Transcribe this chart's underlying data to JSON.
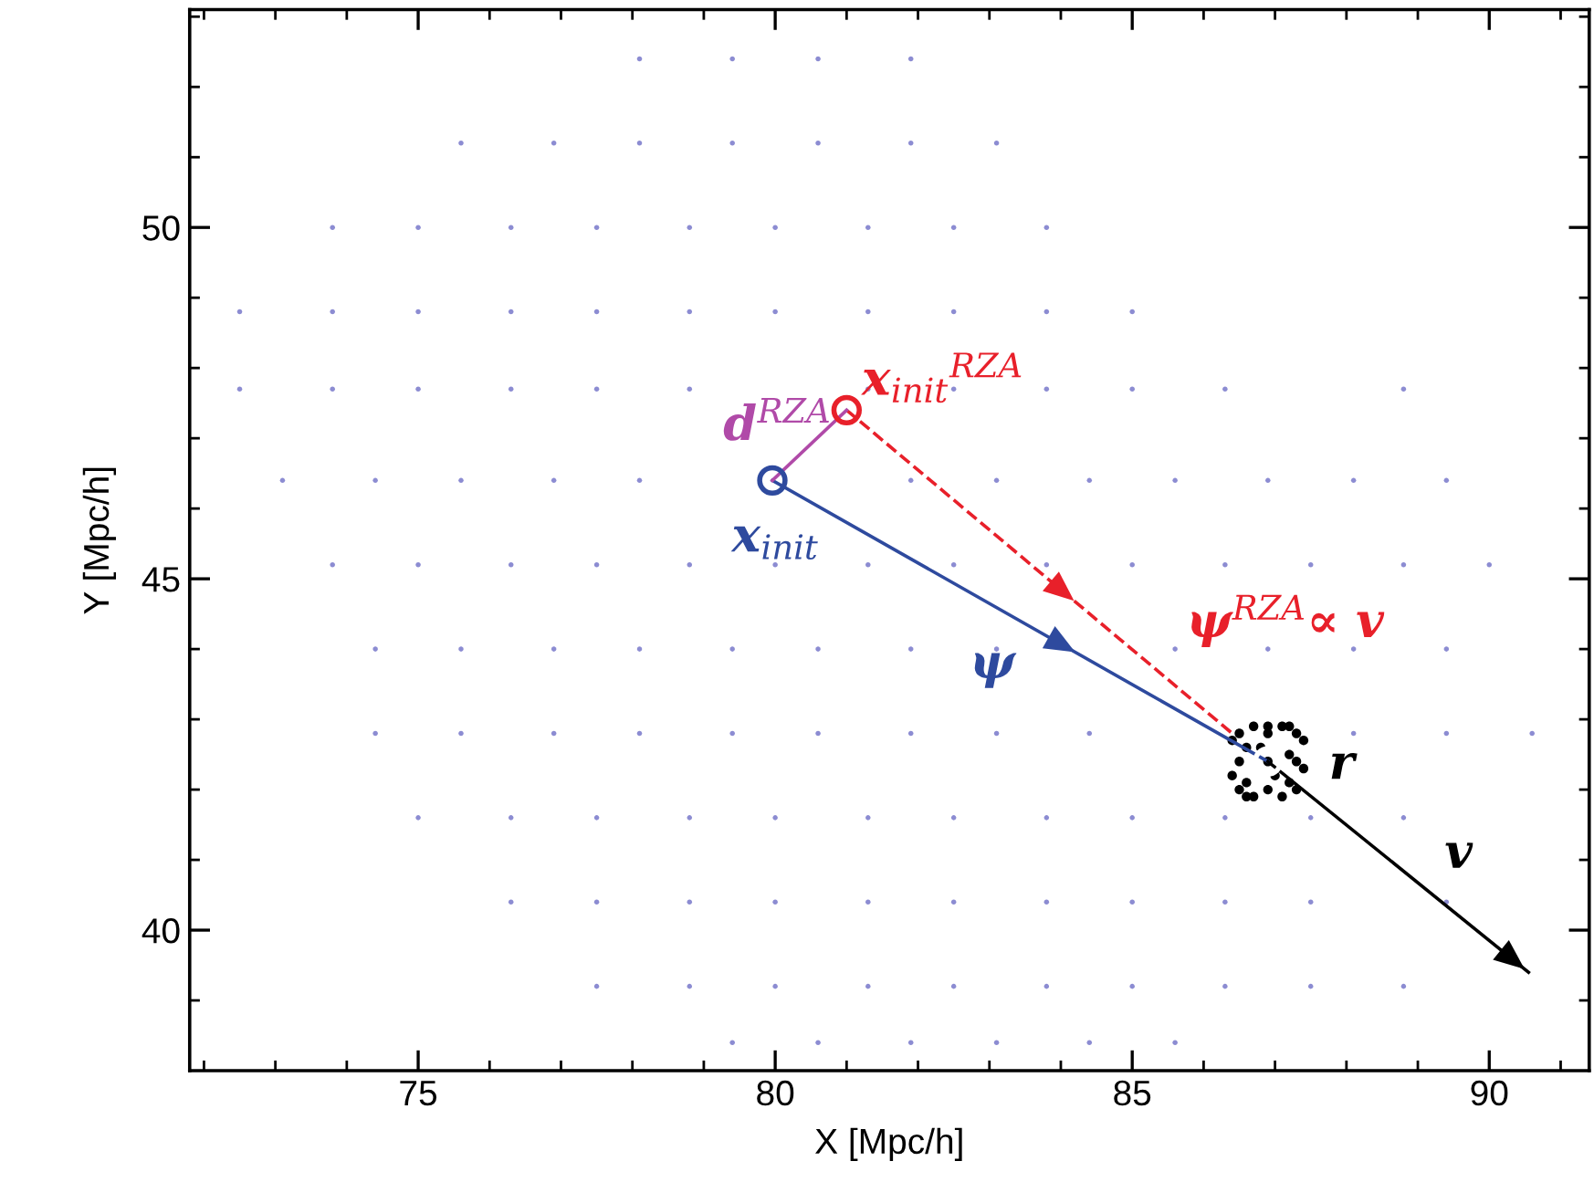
{
  "chart_data": {
    "type": "scatter",
    "xlabel": "X [Mpc/h]",
    "ylabel": "Y [Mpc/h]",
    "xlim": [
      71.8,
      91.4
    ],
    "ylim": [
      38.0,
      53.1
    ],
    "xticks": [
      {
        "value": 72,
        "label": null
      },
      {
        "value": 73,
        "label": null
      },
      {
        "value": 74,
        "label": null
      },
      75,
      {
        "value": 76,
        "label": null
      },
      {
        "value": 77,
        "label": null
      },
      {
        "value": 78,
        "label": null
      },
      {
        "value": 79,
        "label": null
      },
      80,
      {
        "value": 81,
        "label": null
      },
      {
        "value": 82,
        "label": null
      },
      {
        "value": 83,
        "label": null
      },
      {
        "value": 84,
        "label": null
      },
      85,
      {
        "value": 86,
        "label": null
      },
      {
        "value": 87,
        "label": null
      },
      {
        "value": 88,
        "label": null
      },
      {
        "value": 89,
        "label": null
      },
      90,
      {
        "value": 91,
        "label": null
      }
    ],
    "yticks": [
      {
        "value": 39,
        "label": null
      },
      40,
      {
        "value": 41,
        "label": null
      },
      {
        "value": 42,
        "label": null
      },
      {
        "value": 43,
        "label": null
      },
      {
        "value": 44,
        "label": null
      },
      45,
      {
        "value": 46,
        "label": null
      },
      {
        "value": 47,
        "label": null
      },
      {
        "value": 48,
        "label": null
      },
      {
        "value": 49,
        "label": null
      },
      50,
      {
        "value": 51,
        "label": null
      },
      {
        "value": 52,
        "label": null
      },
      {
        "value": 53,
        "label": null
      }
    ],
    "grid": false,
    "series": [
      {
        "color": "#8c8cd2",
        "marker": "circle",
        "x": [
          78.1,
          79.4,
          80.6,
          81.9,
          75.6,
          76.9,
          78.1,
          79.4,
          80.6,
          81.9,
          83.1,
          73.8,
          75.0,
          76.3,
          77.5,
          78.8,
          80.0,
          81.3,
          82.5,
          83.8,
          72.5,
          73.8,
          75.0,
          76.3,
          77.5,
          78.8,
          80.0,
          81.3,
          82.5,
          83.8,
          85.0,
          72.5,
          73.8,
          75.0,
          76.3,
          77.5,
          78.8,
          81.3,
          82.5,
          83.8,
          85.0,
          86.3,
          88.8,
          73.1,
          74.4,
          75.6,
          76.9,
          78.1,
          81.9,
          83.1,
          84.4,
          85.6,
          86.9,
          88.1,
          89.4,
          73.8,
          75.0,
          76.3,
          77.5,
          78.8,
          80.0,
          81.3,
          82.5,
          83.8,
          85.0,
          86.3,
          87.5,
          88.8,
          90.0,
          74.4,
          75.6,
          76.9,
          78.1,
          79.4,
          80.6,
          81.9,
          83.1,
          85.6,
          86.9,
          88.1,
          89.4,
          74.4,
          75.6,
          76.9,
          78.1,
          79.4,
          80.6,
          81.9,
          83.1,
          84.4,
          88.1,
          89.4,
          90.6,
          75.0,
          76.3,
          77.5,
          78.8,
          80.0,
          81.3,
          82.5,
          83.8,
          85.0,
          86.3,
          87.5,
          88.8,
          76.3,
          77.5,
          78.8,
          80.0,
          81.3,
          82.5,
          83.8,
          85.0,
          86.3,
          87.5,
          89.4,
          77.5,
          78.8,
          80.0,
          81.3,
          82.5,
          83.8,
          85.0,
          86.3,
          87.5,
          88.8,
          79.4,
          80.6,
          81.9,
          83.1,
          84.4,
          85.6
        ],
        "values": [
          52.4,
          52.4,
          52.4,
          52.4,
          51.2,
          51.2,
          51.2,
          51.2,
          51.2,
          51.2,
          51.2,
          50.0,
          50.0,
          50.0,
          50.0,
          50.0,
          50.0,
          50.0,
          50.0,
          50.0,
          48.8,
          48.8,
          48.8,
          48.8,
          48.8,
          48.8,
          48.8,
          48.8,
          48.8,
          48.8,
          48.8,
          47.7,
          47.7,
          47.7,
          47.7,
          47.7,
          47.7,
          47.7,
          47.7,
          47.7,
          47.7,
          47.7,
          47.7,
          46.4,
          46.4,
          46.4,
          46.4,
          46.4,
          46.4,
          46.4,
          46.4,
          46.4,
          46.4,
          46.4,
          46.4,
          45.2,
          45.2,
          45.2,
          45.2,
          45.2,
          45.2,
          45.2,
          45.2,
          45.2,
          45.2,
          45.2,
          45.2,
          45.2,
          45.2,
          44.0,
          44.0,
          44.0,
          44.0,
          44.0,
          44.0,
          44.0,
          44.0,
          44.0,
          44.0,
          44.0,
          44.0,
          42.8,
          42.8,
          42.8,
          42.8,
          42.8,
          42.8,
          42.8,
          42.8,
          42.8,
          42.8,
          42.8,
          42.8,
          41.6,
          41.6,
          41.6,
          41.6,
          41.6,
          41.6,
          41.6,
          41.6,
          41.6,
          41.6,
          41.6,
          41.6,
          40.4,
          40.4,
          40.4,
          40.4,
          40.4,
          40.4,
          40.4,
          40.4,
          40.4,
          40.4,
          40.4,
          39.2,
          39.2,
          39.2,
          39.2,
          39.2,
          39.2,
          39.2,
          39.2,
          39.2,
          39.2,
          38.4,
          38.4,
          38.4,
          38.4,
          38.4,
          38.4
        ]
      },
      {
        "color": "#000000",
        "marker": "circle",
        "x": [
          86.9,
          86.5,
          87.3,
          86.6,
          87.2,
          86.4,
          87.4,
          86.7,
          87.1,
          86.9,
          86.5,
          87.3,
          86.8,
          87.0,
          86.6,
          87.2,
          86.4,
          87.4,
          86.9,
          86.7,
          87.1,
          86.9,
          86.5,
          87.3,
          86.6,
          87.2
        ],
        "values": [
          42.4,
          42.4,
          42.4,
          42.1,
          42.1,
          42.7,
          42.7,
          42.9,
          42.9,
          42.0,
          42.8,
          42.0,
          42.6,
          42.2,
          42.6,
          42.5,
          42.2,
          42.3,
          42.9,
          41.9,
          41.9,
          42.8,
          42.0,
          42.8,
          41.9,
          42.9
        ]
      },
      {
        "type": "line",
        "color": "#2e4a9e",
        "line_style": "solid",
        "x": [
          79.96,
          86.9
        ],
        "values": [
          46.4,
          42.4
        ]
      },
      {
        "type": "line",
        "color": "#e8202a",
        "line_style": "dashed",
        "x": [
          81.0,
          86.4
        ],
        "values": [
          47.4,
          42.8
        ]
      },
      {
        "type": "line",
        "color": "#b04aa8",
        "line_style": "solid",
        "x": [
          79.96,
          81.0
        ],
        "values": [
          46.4,
          47.4
        ]
      },
      {
        "type": "line",
        "color": "#000000",
        "line_style": "solid",
        "x": [
          86.9,
          90.55
        ],
        "values": [
          42.4,
          39.4
        ]
      },
      {
        "type": "scatter",
        "color": "#2e4a9e",
        "marker": "circle",
        "x": [
          79.96
        ],
        "values": [
          46.4
        ]
      },
      {
        "type": "scatter",
        "color": "#e8202a",
        "marker": "circle",
        "x": [
          81.0
        ],
        "values": [
          47.4
        ]
      },
      {
        "type": "scatter",
        "color": "#ffffff",
        "marker": "circle",
        "x": [
          86.9
        ],
        "values": [
          42.4
        ]
      }
    ],
    "annotations": [
      {
        "text": "d$^{RZA}$",
        "x": 80.48,
        "y": 46.9
      },
      {
        "text": "x$_{init}$$^{RZA}$",
        "x": 81.0,
        "y": 47.4
      },
      {
        "text": "x$_{init}$",
        "x": 79.96,
        "y": 46.4
      },
      {
        "text": "ψ$^{RZA}$∝ v",
        "x": 85.05,
        "y": 43.95
      },
      {
        "text": "ψ",
        "x": 83.08,
        "y": 44.6
      },
      {
        "text": "r",
        "x": 87.4,
        "y": 42.3
      },
      {
        "text": "v",
        "x": 89.09,
        "y": 40.6
      }
    ]
  }
}
